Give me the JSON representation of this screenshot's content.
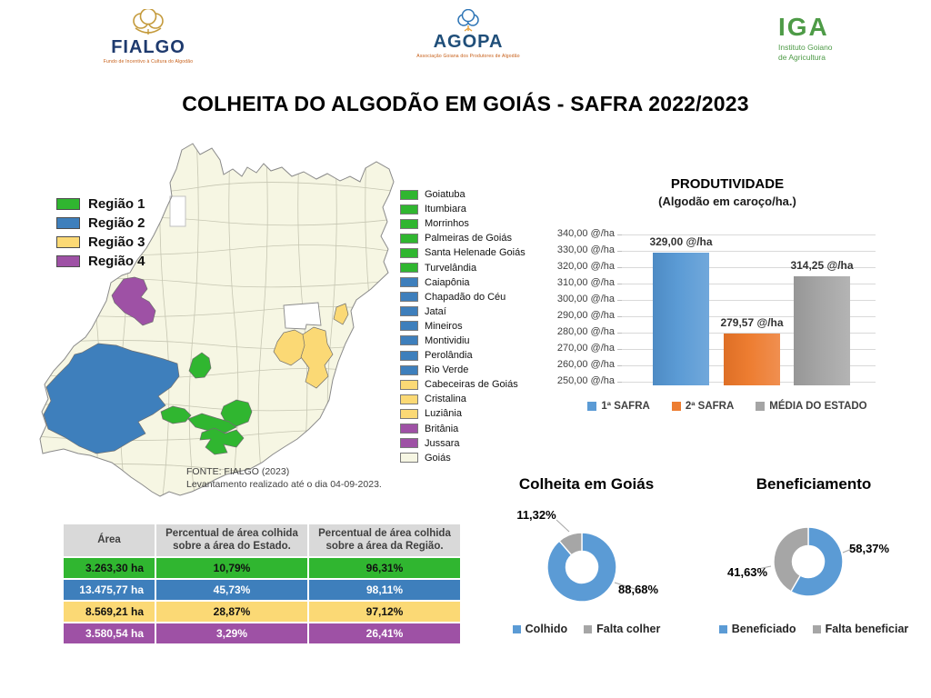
{
  "page": {
    "title": "COLHEITA DO ALGODÃO EM GOIÁS - SAFRA 2022/2023"
  },
  "logos": {
    "fialgo": {
      "name": "FIALGO",
      "tagline": "Fundo de Incentivo à Cultura do Algodão"
    },
    "agopa": {
      "name": "AGOPA",
      "tagline": "Associação Goiana dos Produtores de Algodão"
    },
    "iga": {
      "name": "IGA",
      "tagline_line1": "Instituto Goiano",
      "tagline_line2": "de Agricultura"
    }
  },
  "map": {
    "region_colors": {
      "green": "#30B630",
      "blue": "#3E7FBC",
      "yellow": "#FBD975",
      "purple": "#9E51A5",
      "state": "#F6F6E3"
    },
    "regions_legend": [
      {
        "label": "Região 1",
        "region": "green"
      },
      {
        "label": "Região 2",
        "region": "blue"
      },
      {
        "label": "Região 3",
        "region": "yellow"
      },
      {
        "label": "Região 4",
        "region": "purple"
      }
    ],
    "municipalities": [
      {
        "name": "Goiatuba",
        "region": "green"
      },
      {
        "name": "Itumbiara",
        "region": "green"
      },
      {
        "name": "Morrinhos",
        "region": "green"
      },
      {
        "name": "Palmeiras de Goiás",
        "region": "green"
      },
      {
        "name": "Santa Helenade Goiás",
        "region": "green"
      },
      {
        "name": "Turvelândia",
        "region": "green"
      },
      {
        "name": "Caiapônia",
        "region": "blue"
      },
      {
        "name": "Chapadão do Céu",
        "region": "blue"
      },
      {
        "name": "Jataí",
        "region": "blue"
      },
      {
        "name": "Mineiros",
        "region": "blue"
      },
      {
        "name": "Montividiu",
        "region": "blue"
      },
      {
        "name": "Perolândia",
        "region": "blue"
      },
      {
        "name": "Rio Verde",
        "region": "blue"
      },
      {
        "name": "Cabeceiras de Goiás",
        "region": "yellow"
      },
      {
        "name": "Cristalina",
        "region": "yellow"
      },
      {
        "name": "Luziânia",
        "region": "yellow"
      },
      {
        "name": "Britânia",
        "region": "purple"
      },
      {
        "name": "Jussara",
        "region": "purple"
      },
      {
        "name": "Goiás",
        "region": "state"
      }
    ],
    "source_line1": "FONTE: FIALGO (2023)",
    "source_line2": "Levantamento realizado até o dia 04-09-2023."
  },
  "chart_data": [
    {
      "type": "bar",
      "title": "PRODUTIVIDADE",
      "subtitle": "(Algodão em caroço/ha.)",
      "categories": [
        "1ª SAFRA",
        "2ª SAFRA",
        "MÉDIA DO ESTADO"
      ],
      "values": [
        329.0,
        279.57,
        314.25
      ],
      "value_labels": [
        "329,00 @/ha",
        "279,57 @/ha",
        "314,25 @/ha"
      ],
      "colors": [
        "#5B9BD5",
        "#ED7D31",
        "#A5A5A5"
      ],
      "y_ticks": [
        "340,00 @/ha",
        "330,00 @/ha",
        "320,00 @/ha",
        "310,00 @/ha",
        "300,00 @/ha",
        "290,00 @/ha",
        "280,00 @/ha",
        "270,00 @/ha",
        "260,00 @/ha",
        "250,00 @/ha"
      ],
      "ylim": [
        247.8,
        340
      ],
      "grid": true,
      "legend_position": "bottom",
      "legend": [
        "1ª SAFRA",
        "2ª SAFRA",
        "MÉDIA DO ESTADO"
      ]
    },
    {
      "type": "pie",
      "subtype": "donut",
      "title": "Colheita em Goiás",
      "slices": [
        {
          "label": "Colhido",
          "value": 88.68,
          "display": "88,68%",
          "color": "#5B9BD5"
        },
        {
          "label": "Falta colher",
          "value": 11.32,
          "display": "11,32%",
          "color": "#A6A6A6"
        }
      ],
      "legend_position": "bottom"
    },
    {
      "type": "pie",
      "subtype": "donut",
      "title": "Beneficiamento",
      "slices": [
        {
          "label": "Beneficiado",
          "value": 58.37,
          "display": "58,37%",
          "color": "#5B9BD5"
        },
        {
          "label": "Falta beneficiar",
          "value": 41.63,
          "display": "41,63%",
          "color": "#A6A6A6"
        }
      ],
      "legend_position": "bottom"
    },
    {
      "type": "table",
      "headers": [
        "Área",
        "Percentual de área colhida sobre a área do Estado.",
        "Percentual de área colhida sobre a área da Região."
      ],
      "rows": [
        {
          "cells": [
            "3.263,30 ha",
            "10,79%",
            "96,31%"
          ],
          "region": "green",
          "fg": "#111111"
        },
        {
          "cells": [
            "13.475,77 ha",
            "45,73%",
            "98,11%"
          ],
          "region": "blue",
          "fg": "#FFFFFF"
        },
        {
          "cells": [
            "8.569,21 ha",
            "28,87%",
            "97,12%"
          ],
          "region": "yellow",
          "fg": "#111111"
        },
        {
          "cells": [
            "3.580,54 ha",
            "3,29%",
            "26,41%"
          ],
          "region": "purple",
          "fg": "#FFFFFF"
        }
      ],
      "header_bg": "#D9D9D9"
    }
  ]
}
